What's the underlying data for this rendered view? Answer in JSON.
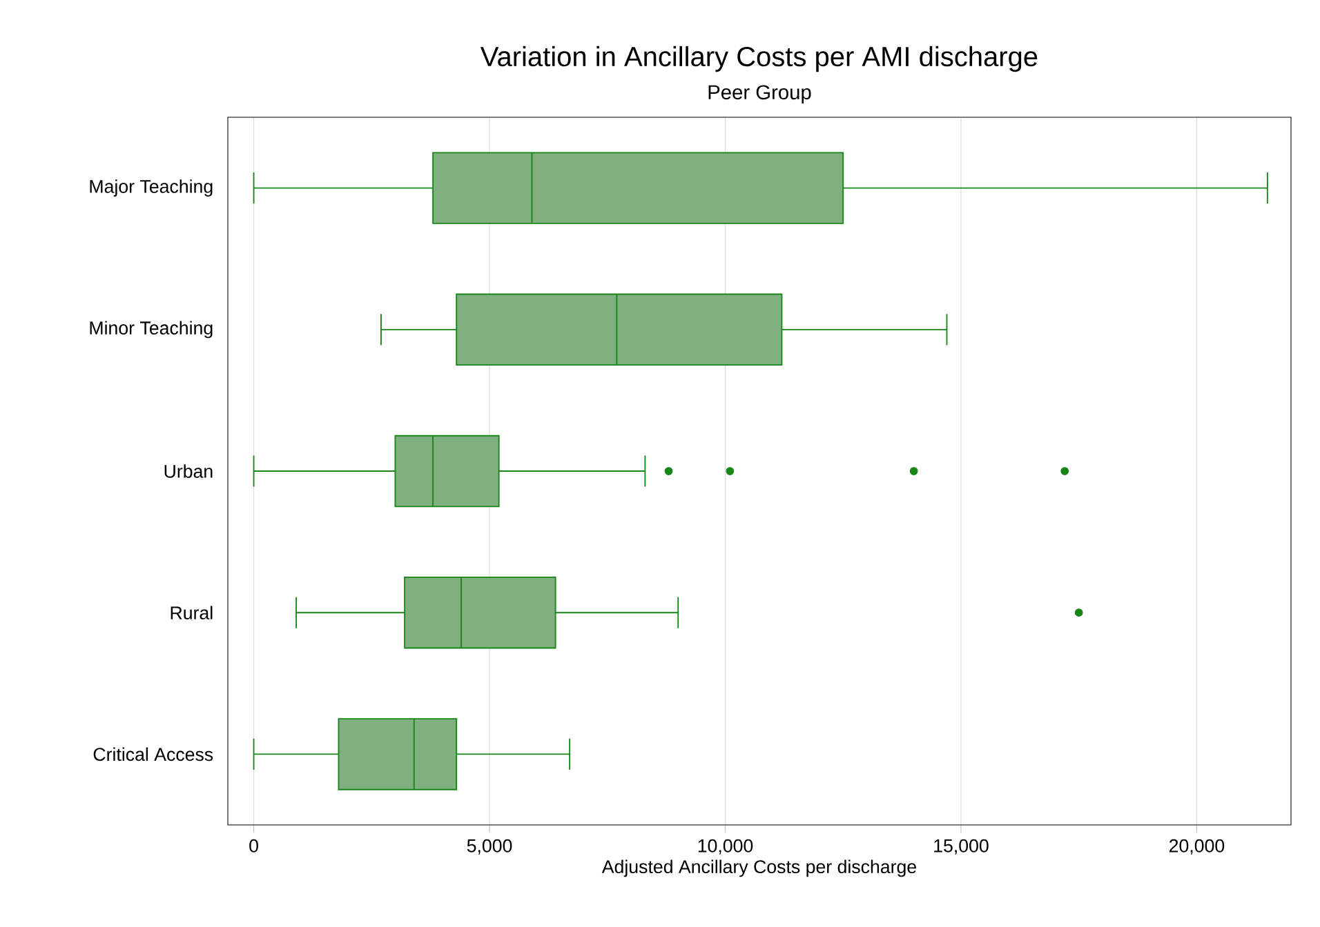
{
  "chart_data": {
    "type": "box",
    "title": "Variation in Ancillary Costs per AMI discharge",
    "subtitle": "Peer Group",
    "xlabel": "Adjusted Ancillary Costs per discharge",
    "orientation": "horizontal",
    "categories": [
      "Major Teaching",
      "Minor Teaching",
      "Urban",
      "Rural",
      "Critical Access"
    ],
    "boxes": [
      {
        "low": 0,
        "q1": 3800,
        "median": 5900,
        "q3": 12500,
        "high": 21500
      },
      {
        "low": 2700,
        "q1": 4300,
        "median": 7700,
        "q3": 11200,
        "high": 14700
      },
      {
        "low": 0,
        "q1": 3000,
        "median": 3800,
        "q3": 5200,
        "high": 8300,
        "outliers": [
          8800,
          10100,
          14000,
          17200
        ]
      },
      {
        "low": 900,
        "q1": 3200,
        "median": 4400,
        "q3": 6400,
        "high": 9000,
        "outliers": [
          17500
        ]
      },
      {
        "low": 0,
        "q1": 1800,
        "median": 3400,
        "q3": 4300,
        "high": 6700
      }
    ],
    "color": "#80b080",
    "xlim": [
      -550,
      22000
    ],
    "xticks": [
      {
        "value": 0,
        "label": "0"
      },
      {
        "value": 5000,
        "label": "5,000"
      },
      {
        "value": 10000,
        "label": "10,000"
      },
      {
        "value": 15000,
        "label": "15,000"
      },
      {
        "value": 20000,
        "label": "20,000"
      }
    ],
    "grid": "x"
  }
}
